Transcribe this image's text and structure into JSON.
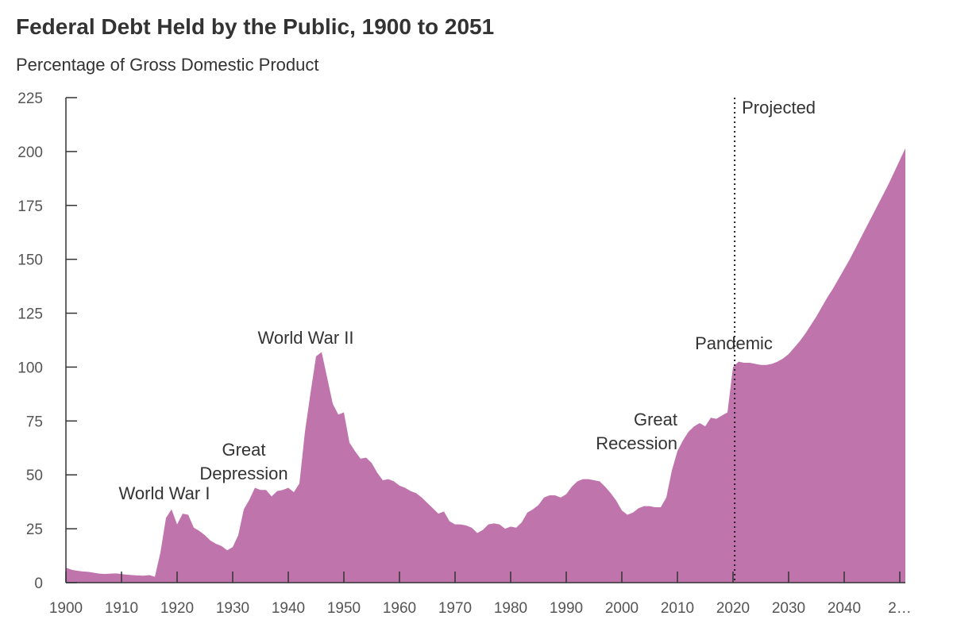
{
  "chart_data": {
    "type": "area",
    "title": "Federal Debt Held by the Public, 1900 to 2051",
    "subtitle": "Percentage of Gross Domestic Product",
    "color": "#c074ac",
    "x": [
      1900,
      1901,
      1902,
      1903,
      1904,
      1905,
      1906,
      1907,
      1908,
      1909,
      1910,
      1911,
      1912,
      1913,
      1914,
      1915,
      1916,
      1917,
      1918,
      1919,
      1920,
      1921,
      1922,
      1923,
      1924,
      1925,
      1926,
      1927,
      1928,
      1929,
      1930,
      1931,
      1932,
      1933,
      1934,
      1935,
      1936,
      1937,
      1938,
      1939,
      1940,
      1941,
      1942,
      1943,
      1944,
      1945,
      1946,
      1947,
      1948,
      1949,
      1950,
      1951,
      1952,
      1953,
      1954,
      1955,
      1956,
      1957,
      1958,
      1959,
      1960,
      1961,
      1962,
      1963,
      1964,
      1965,
      1966,
      1967,
      1968,
      1969,
      1970,
      1971,
      1972,
      1973,
      1974,
      1975,
      1976,
      1977,
      1978,
      1979,
      1980,
      1981,
      1982,
      1983,
      1984,
      1985,
      1986,
      1987,
      1988,
      1989,
      1990,
      1991,
      1992,
      1993,
      1994,
      1995,
      1996,
      1997,
      1998,
      1999,
      2000,
      2001,
      2002,
      2003,
      2004,
      2005,
      2006,
      2007,
      2008,
      2009,
      2010,
      2011,
      2012,
      2013,
      2014,
      2015,
      2016,
      2017,
      2018,
      2019,
      2020,
      2021,
      2022,
      2023,
      2024,
      2025,
      2026,
      2027,
      2028,
      2029,
      2030,
      2031,
      2032,
      2033,
      2034,
      2035,
      2036,
      2037,
      2038,
      2039,
      2040,
      2041,
      2042,
      2043,
      2044,
      2045,
      2046,
      2047,
      2048,
      2049,
      2050,
      2051
    ],
    "values": [
      7,
      6,
      5.5,
      5.2,
      5,
      4.6,
      4.2,
      4,
      4.2,
      4.3,
      4,
      3.7,
      3.5,
      3.3,
      3.2,
      3.5,
      2.7,
      14,
      30,
      34,
      27,
      32,
      31.5,
      25.5,
      24,
      22,
      19.5,
      18,
      17,
      15,
      16.5,
      22,
      34,
      38.5,
      44,
      43,
      43,
      40,
      42.5,
      43,
      44,
      42,
      46,
      70,
      88,
      105,
      107,
      95,
      83,
      78,
      79,
      65,
      61,
      57.5,
      58,
      55.5,
      51,
      47.5,
      48,
      47,
      45,
      44,
      42.5,
      41.5,
      39.5,
      37,
      34.5,
      32,
      33,
      28.5,
      27,
      27,
      26.5,
      25.5,
      23,
      24.5,
      27,
      27.5,
      27,
      25,
      26,
      25.5,
      28,
      32.5,
      34,
      36,
      39.5,
      40.5,
      40.5,
      39.5,
      41,
      44.5,
      47,
      48,
      48,
      47.5,
      47,
      44.5,
      41.5,
      38,
      33.5,
      31.5,
      32.5,
      34.5,
      35.5,
      35.5,
      35,
      35,
      39.5,
      52,
      61,
      66,
      70,
      72.5,
      74,
      72.5,
      76.5,
      76,
      77.5,
      79,
      100,
      102.5,
      102,
      102,
      101.5,
      101,
      101,
      101.5,
      102.5,
      104,
      106,
      109,
      112,
      115.5,
      119.5,
      123.5,
      128,
      132.5,
      136.5,
      141,
      145.5,
      150,
      155,
      160,
      165,
      170,
      175,
      180,
      185,
      190.5,
      196,
      201.5
    ],
    "xlim": [
      1900,
      2051
    ],
    "xticks": [
      1900,
      1910,
      1920,
      1930,
      1940,
      1950,
      1960,
      1970,
      1980,
      1990,
      2000,
      2010,
      2020,
      2030,
      2040,
      {
        "value": 2050,
        "label": "2…"
      }
    ],
    "ylim": [
      0,
      225
    ],
    "yticks": [
      0,
      25,
      50,
      75,
      100,
      125,
      150,
      175,
      200,
      225
    ],
    "projection_start": 2020.3,
    "projection_label": "Projected",
    "annotations": [
      {
        "lines": [
          "World War I"
        ]
      },
      {
        "lines": [
          "Great",
          "Depression"
        ]
      },
      {
        "lines": [
          "World War II"
        ]
      },
      {
        "lines": [
          "Great",
          "Recession"
        ]
      },
      {
        "lines": [
          "Pandemic"
        ]
      }
    ]
  }
}
